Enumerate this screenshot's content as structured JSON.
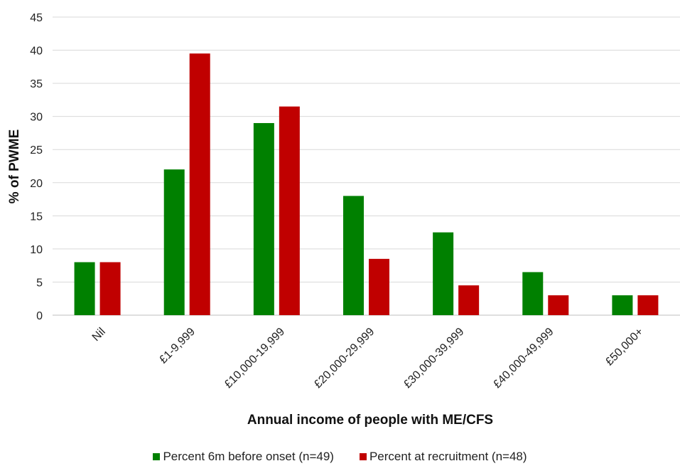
{
  "chart_data": {
    "type": "bar",
    "title": "",
    "xlabel": "Annual income of people with ME/CFS",
    "ylabel": "% of PWME",
    "ylim": [
      0,
      45
    ],
    "yticks": [
      0,
      5,
      10,
      15,
      20,
      25,
      30,
      35,
      40,
      45
    ],
    "grid": true,
    "legend_position": "bottom",
    "categories": [
      "Nil",
      "£1-9,999",
      "£10,000-19,999",
      "£20,000-29,999",
      "£30,000-39,999",
      "£40,000-49,999",
      "£50,000+"
    ],
    "series": [
      {
        "name": "Percent 6m before onset (n=49)",
        "color": "#008000",
        "values": [
          8,
          22,
          29,
          18,
          12.5,
          6.5,
          3
        ]
      },
      {
        "name": "Percent at recruitment (n=48)",
        "color": "#C00000",
        "values": [
          8,
          39.5,
          31.5,
          8.5,
          4.5,
          3,
          3
        ]
      }
    ]
  }
}
